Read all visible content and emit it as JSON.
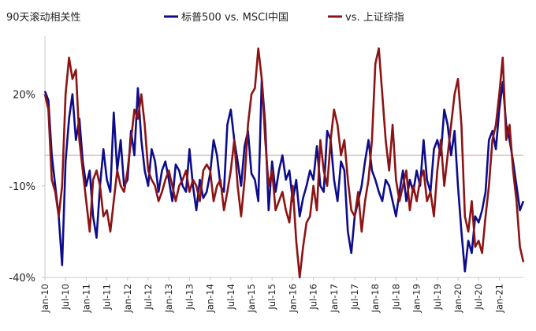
{
  "chart_data": {
    "type": "line",
    "title": "90天滚动相关性",
    "xlabel": "",
    "ylabel": "",
    "y_tick_labels": [
      "20%",
      "-10%",
      "-40%"
    ],
    "y_ticks": [
      20,
      -10,
      -40
    ],
    "ylim": [
      -40,
      39
    ],
    "xlim": [
      "2010-01",
      "2021-08"
    ],
    "baseline": 0,
    "x_tick_labels": [
      "Jan-10",
      "Jul-10",
      "Jan-11",
      "Jul-11",
      "Jan-12",
      "Jul-12",
      "Jan-13",
      "Jul-13",
      "Jan-14",
      "Jul-14",
      "Jan-15",
      "Jul-15",
      "Jan-16",
      "Jul-16",
      "Jan-17",
      "Jul-17",
      "Jan-18",
      "Jul-18",
      "Jan-19",
      "Jul-19",
      "Jan-20",
      "Jul-20",
      "Jan-21"
    ],
    "x_tick_months": [
      "2010-01",
      "2010-07",
      "2011-01",
      "2011-07",
      "2012-01",
      "2012-07",
      "2013-01",
      "2013-07",
      "2014-01",
      "2014-07",
      "2015-01",
      "2015-07",
      "2016-01",
      "2016-07",
      "2017-01",
      "2017-07",
      "2018-01",
      "2018-07",
      "2019-01",
      "2019-07",
      "2020-01",
      "2020-07",
      "2021-01"
    ],
    "legend_position": "top-center",
    "series": [
      {
        "name": "标普500 vs. MSCI中国",
        "color": "#0d0d8c",
        "points": [
          [
            "2010-01",
            21
          ],
          [
            "2010-02",
            18
          ],
          [
            "2010-03",
            0
          ],
          [
            "2010-04",
            -10
          ],
          [
            "2010-05",
            -20
          ],
          [
            "2010-06",
            -36
          ],
          [
            "2010-07",
            -2
          ],
          [
            "2010-08",
            12
          ],
          [
            "2010-09",
            20
          ],
          [
            "2010-10",
            5
          ],
          [
            "2010-11",
            12
          ],
          [
            "2010-12",
            -2
          ],
          [
            "2011-01",
            -10
          ],
          [
            "2011-02",
            -5
          ],
          [
            "2011-03",
            -20
          ],
          [
            "2011-04",
            -27
          ],
          [
            "2011-05",
            -10
          ],
          [
            "2011-06",
            2
          ],
          [
            "2011-07",
            -8
          ],
          [
            "2011-08",
            -12
          ],
          [
            "2011-09",
            14
          ],
          [
            "2011-10",
            -5
          ],
          [
            "2011-11",
            5
          ],
          [
            "2011-12",
            -10
          ],
          [
            "2012-01",
            -8
          ],
          [
            "2012-02",
            8
          ],
          [
            "2012-03",
            0
          ],
          [
            "2012-04",
            22
          ],
          [
            "2012-05",
            5
          ],
          [
            "2012-06",
            -5
          ],
          [
            "2012-07",
            -10
          ],
          [
            "2012-08",
            2
          ],
          [
            "2012-09",
            -2
          ],
          [
            "2012-10",
            -12
          ],
          [
            "2012-11",
            -5
          ],
          [
            "2012-12",
            -2
          ],
          [
            "2013-01",
            -8
          ],
          [
            "2013-02",
            -15
          ],
          [
            "2013-03",
            -3
          ],
          [
            "2013-04",
            -5
          ],
          [
            "2013-05",
            -10
          ],
          [
            "2013-06",
            -12
          ],
          [
            "2013-07",
            2
          ],
          [
            "2013-08",
            -10
          ],
          [
            "2013-09",
            -18
          ],
          [
            "2013-10",
            -8
          ],
          [
            "2013-11",
            -14
          ],
          [
            "2013-12",
            -12
          ],
          [
            "2014-01",
            -6
          ],
          [
            "2014-02",
            5
          ],
          [
            "2014-03",
            0
          ],
          [
            "2014-04",
            -10
          ],
          [
            "2014-05",
            -12
          ],
          [
            "2014-06",
            10
          ],
          [
            "2014-07",
            15
          ],
          [
            "2014-08",
            5
          ],
          [
            "2014-09",
            -2
          ],
          [
            "2014-10",
            -10
          ],
          [
            "2014-11",
            3
          ],
          [
            "2014-12",
            8
          ],
          [
            "2015-01",
            -6
          ],
          [
            "2015-02",
            -8
          ],
          [
            "2015-03",
            -15
          ],
          [
            "2015-04",
            25
          ],
          [
            "2015-05",
            10
          ],
          [
            "2015-06",
            -18
          ],
          [
            "2015-07",
            -2
          ],
          [
            "2015-08",
            -12
          ],
          [
            "2015-09",
            -5
          ],
          [
            "2015-10",
            0
          ],
          [
            "2015-11",
            -8
          ],
          [
            "2015-12",
            -5
          ],
          [
            "2016-01",
            -15
          ],
          [
            "2016-02",
            -8
          ],
          [
            "2016-03",
            -20
          ],
          [
            "2016-04",
            -14
          ],
          [
            "2016-05",
            -10
          ],
          [
            "2016-06",
            -5
          ],
          [
            "2016-07",
            -8
          ],
          [
            "2016-08",
            3
          ],
          [
            "2016-09",
            -10
          ],
          [
            "2016-10",
            -12
          ],
          [
            "2016-11",
            8
          ],
          [
            "2016-12",
            5
          ],
          [
            "2017-01",
            -8
          ],
          [
            "2017-02",
            -15
          ],
          [
            "2017-03",
            -2
          ],
          [
            "2017-04",
            -5
          ],
          [
            "2017-05",
            -25
          ],
          [
            "2017-06",
            -32
          ],
          [
            "2017-07",
            -20
          ],
          [
            "2017-08",
            -15
          ],
          [
            "2017-09",
            -10
          ],
          [
            "2017-10",
            -2
          ],
          [
            "2017-11",
            5
          ],
          [
            "2017-12",
            -5
          ],
          [
            "2018-01",
            -8
          ],
          [
            "2018-02",
            -12
          ],
          [
            "2018-03",
            -15
          ],
          [
            "2018-04",
            -8
          ],
          [
            "2018-05",
            -10
          ],
          [
            "2018-06",
            -15
          ],
          [
            "2018-07",
            -20
          ],
          [
            "2018-08",
            -12
          ],
          [
            "2018-09",
            -5
          ],
          [
            "2018-10",
            -15
          ],
          [
            "2018-11",
            -8
          ],
          [
            "2018-12",
            -12
          ],
          [
            "2019-01",
            -5
          ],
          [
            "2019-02",
            -10
          ],
          [
            "2019-03",
            5
          ],
          [
            "2019-04",
            -8
          ],
          [
            "2019-05",
            -12
          ],
          [
            "2019-06",
            2
          ],
          [
            "2019-07",
            5
          ],
          [
            "2019-08",
            0
          ],
          [
            "2019-09",
            15
          ],
          [
            "2019-10",
            10
          ],
          [
            "2019-11",
            0
          ],
          [
            "2019-12",
            8
          ],
          [
            "2020-01",
            -10
          ],
          [
            "2020-02",
            -25
          ],
          [
            "2020-03",
            -38
          ],
          [
            "2020-04",
            -28
          ],
          [
            "2020-05",
            -32
          ],
          [
            "2020-06",
            -20
          ],
          [
            "2020-07",
            -22
          ],
          [
            "2020-08",
            -18
          ],
          [
            "2020-09",
            -12
          ],
          [
            "2020-10",
            5
          ],
          [
            "2020-11",
            8
          ],
          [
            "2020-12",
            2
          ],
          [
            "2021-01",
            15
          ],
          [
            "2021-02",
            24
          ],
          [
            "2021-03",
            10
          ],
          [
            "2021-04",
            5
          ],
          [
            "2021-05",
            -2
          ],
          [
            "2021-06",
            -10
          ],
          [
            "2021-07",
            -18
          ],
          [
            "2021-08",
            -15
          ]
        ]
      },
      {
        "name": "vs. 上证综指",
        "color": "#8c1414",
        "points": [
          [
            "2010-01",
            20
          ],
          [
            "2010-02",
            15
          ],
          [
            "2010-03",
            -8
          ],
          [
            "2010-04",
            -12
          ],
          [
            "2010-05",
            -20
          ],
          [
            "2010-06",
            -10
          ],
          [
            "2010-07",
            20
          ],
          [
            "2010-08",
            32
          ],
          [
            "2010-09",
            25
          ],
          [
            "2010-10",
            28
          ],
          [
            "2010-11",
            5
          ],
          [
            "2010-12",
            -5
          ],
          [
            "2011-01",
            -15
          ],
          [
            "2011-02",
            -25
          ],
          [
            "2011-03",
            -8
          ],
          [
            "2011-04",
            -5
          ],
          [
            "2011-05",
            -10
          ],
          [
            "2011-06",
            -20
          ],
          [
            "2011-07",
            -18
          ],
          [
            "2011-08",
            -25
          ],
          [
            "2011-09",
            -15
          ],
          [
            "2011-10",
            -5
          ],
          [
            "2011-11",
            -10
          ],
          [
            "2011-12",
            -12
          ],
          [
            "2012-01",
            -5
          ],
          [
            "2012-02",
            5
          ],
          [
            "2012-03",
            15
          ],
          [
            "2012-04",
            12
          ],
          [
            "2012-05",
            20
          ],
          [
            "2012-06",
            10
          ],
          [
            "2012-07",
            -5
          ],
          [
            "2012-08",
            -8
          ],
          [
            "2012-09",
            -10
          ],
          [
            "2012-10",
            -15
          ],
          [
            "2012-11",
            -12
          ],
          [
            "2012-12",
            -8
          ],
          [
            "2013-01",
            -5
          ],
          [
            "2013-02",
            -10
          ],
          [
            "2013-03",
            -15
          ],
          [
            "2013-04",
            -10
          ],
          [
            "2013-05",
            -8
          ],
          [
            "2013-06",
            -5
          ],
          [
            "2013-07",
            -12
          ],
          [
            "2013-08",
            -8
          ],
          [
            "2013-09",
            -10
          ],
          [
            "2013-10",
            -15
          ],
          [
            "2013-11",
            -5
          ],
          [
            "2013-12",
            -3
          ],
          [
            "2014-01",
            -5
          ],
          [
            "2014-02",
            -15
          ],
          [
            "2014-03",
            -10
          ],
          [
            "2014-04",
            -8
          ],
          [
            "2014-05",
            -18
          ],
          [
            "2014-06",
            -12
          ],
          [
            "2014-07",
            -5
          ],
          [
            "2014-08",
            5
          ],
          [
            "2014-09",
            -10
          ],
          [
            "2014-10",
            -20
          ],
          [
            "2014-11",
            -8
          ],
          [
            "2014-12",
            10
          ],
          [
            "2015-01",
            20
          ],
          [
            "2015-02",
            22
          ],
          [
            "2015-03",
            35
          ],
          [
            "2015-04",
            25
          ],
          [
            "2015-05",
            5
          ],
          [
            "2015-06",
            -10
          ],
          [
            "2015-07",
            -5
          ],
          [
            "2015-08",
            -18
          ],
          [
            "2015-09",
            -15
          ],
          [
            "2015-10",
            -12
          ],
          [
            "2015-11",
            -18
          ],
          [
            "2015-12",
            -22
          ],
          [
            "2016-01",
            -10
          ],
          [
            "2016-02",
            -28
          ],
          [
            "2016-03",
            -40
          ],
          [
            "2016-04",
            -30
          ],
          [
            "2016-05",
            -22
          ],
          [
            "2016-06",
            -20
          ],
          [
            "2016-07",
            -10
          ],
          [
            "2016-08",
            -18
          ],
          [
            "2016-09",
            5
          ],
          [
            "2016-10",
            -5
          ],
          [
            "2016-11",
            -10
          ],
          [
            "2016-12",
            5
          ],
          [
            "2017-01",
            15
          ],
          [
            "2017-02",
            10
          ],
          [
            "2017-03",
            0
          ],
          [
            "2017-04",
            5
          ],
          [
            "2017-05",
            -8
          ],
          [
            "2017-06",
            -18
          ],
          [
            "2017-07",
            -20
          ],
          [
            "2017-08",
            -12
          ],
          [
            "2017-09",
            -25
          ],
          [
            "2017-10",
            -15
          ],
          [
            "2017-11",
            -8
          ],
          [
            "2017-12",
            5
          ],
          [
            "2018-01",
            30
          ],
          [
            "2018-02",
            35
          ],
          [
            "2018-03",
            20
          ],
          [
            "2018-04",
            5
          ],
          [
            "2018-05",
            -5
          ],
          [
            "2018-06",
            10
          ],
          [
            "2018-07",
            -8
          ],
          [
            "2018-08",
            -15
          ],
          [
            "2018-09",
            -10
          ],
          [
            "2018-10",
            -5
          ],
          [
            "2018-11",
            -18
          ],
          [
            "2018-12",
            -10
          ],
          [
            "2019-01",
            -15
          ],
          [
            "2019-02",
            -8
          ],
          [
            "2019-03",
            -5
          ],
          [
            "2019-04",
            -15
          ],
          [
            "2019-05",
            -12
          ],
          [
            "2019-06",
            -20
          ],
          [
            "2019-07",
            -5
          ],
          [
            "2019-08",
            5
          ],
          [
            "2019-09",
            -10
          ],
          [
            "2019-10",
            0
          ],
          [
            "2019-11",
            10
          ],
          [
            "2019-12",
            20
          ],
          [
            "2020-01",
            25
          ],
          [
            "2020-02",
            10
          ],
          [
            "2020-03",
            -20
          ],
          [
            "2020-04",
            -25
          ],
          [
            "2020-05",
            -15
          ],
          [
            "2020-06",
            -30
          ],
          [
            "2020-07",
            -28
          ],
          [
            "2020-08",
            -32
          ],
          [
            "2020-09",
            -20
          ],
          [
            "2020-10",
            -10
          ],
          [
            "2020-11",
            5
          ],
          [
            "2020-12",
            10
          ],
          [
            "2021-01",
            20
          ],
          [
            "2021-02",
            32
          ],
          [
            "2021-03",
            5
          ],
          [
            "2021-04",
            10
          ],
          [
            "2021-05",
            -5
          ],
          [
            "2021-06",
            -15
          ],
          [
            "2021-07",
            -30
          ],
          [
            "2021-08",
            -35
          ]
        ]
      }
    ]
  }
}
